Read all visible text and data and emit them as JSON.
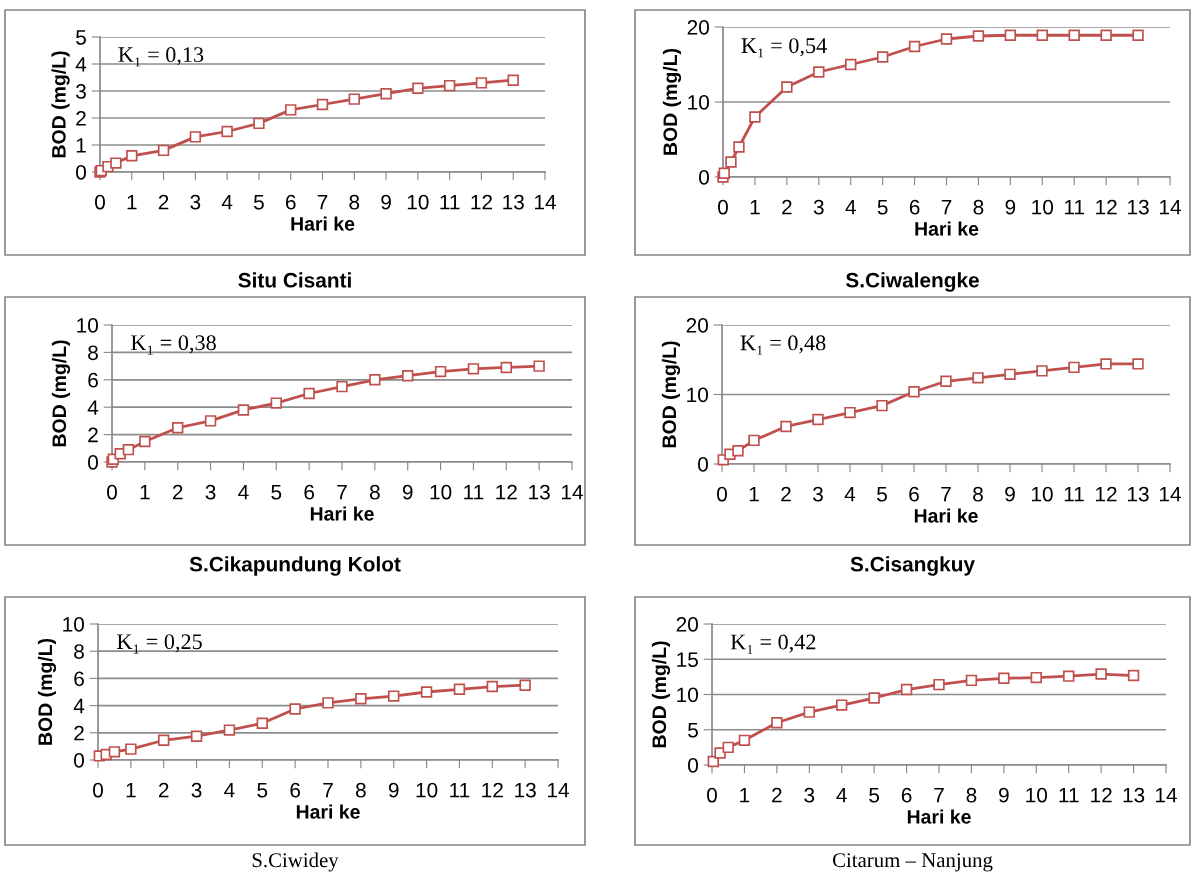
{
  "chart_data": [
    {
      "type": "line",
      "title": "Situ Cisanti",
      "xlabel": "Hari ke",
      "ylabel": "BOD (mg/L)",
      "annotations": [
        "K₁ = 0,13"
      ],
      "x": [
        0,
        0.04,
        0.25,
        0.5,
        1,
        2,
        3,
        4,
        5,
        6,
        7,
        8,
        9,
        10,
        11,
        12,
        13
      ],
      "series": [
        {
          "color": "#c0504d",
          "values": [
            0,
            0.05,
            0.2,
            0.33,
            0.6,
            0.8,
            1.3,
            1.5,
            1.8,
            2.3,
            2.5,
            2.7,
            2.9,
            3.1,
            3.2,
            3.3,
            3.4
          ]
        }
      ],
      "xlim": [
        0,
        14
      ],
      "xticks": [
        0,
        1,
        2,
        3,
        4,
        5,
        6,
        7,
        8,
        9,
        10,
        11,
        12,
        13,
        14
      ],
      "ylim": [
        0,
        5
      ],
      "yticks": [
        0,
        1,
        2,
        3,
        4,
        5
      ],
      "grid": "y",
      "marker": "square",
      "line_style": "solid"
    },
    {
      "type": "line",
      "title": "S.Ciwalengke",
      "xlabel": "Hari ke",
      "ylabel": "BOD (mg/L)",
      "annotations": [
        "K₁ = 0,54"
      ],
      "x": [
        0,
        0.04,
        0.25,
        0.5,
        1,
        2,
        3,
        4,
        5,
        6,
        7,
        8,
        9,
        10,
        11,
        12,
        13
      ],
      "series": [
        {
          "color": "#c0504d",
          "values": [
            0,
            0.5,
            2,
            4,
            8,
            12,
            14,
            15,
            16,
            17.4,
            18.4,
            18.8,
            18.9,
            18.9,
            18.9,
            18.9,
            18.9
          ]
        }
      ],
      "xlim": [
        0,
        14
      ],
      "xticks": [
        0,
        1,
        2,
        3,
        4,
        5,
        6,
        7,
        8,
        9,
        10,
        11,
        12,
        13,
        14
      ],
      "ylim": [
        0,
        20
      ],
      "yticks": [
        0,
        10,
        20
      ],
      "grid": "y",
      "marker": "square",
      "line_style": "solid"
    },
    {
      "type": "line",
      "title": "S.Cikapundung Kolot",
      "xlabel": "Hari ke",
      "ylabel": "BOD (mg/L)",
      "annotations": [
        "K₁ = 0,38"
      ],
      "x": [
        0,
        0.04,
        0.25,
        0.5,
        1,
        2,
        3,
        4,
        5,
        6,
        7,
        8,
        9,
        10,
        11,
        12,
        13
      ],
      "series": [
        {
          "color": "#c0504d",
          "values": [
            0,
            0.2,
            0.6,
            0.9,
            1.5,
            2.5,
            3.0,
            3.8,
            4.3,
            5.0,
            5.5,
            6.0,
            6.3,
            6.6,
            6.8,
            6.9,
            7.0
          ]
        }
      ],
      "xlim": [
        0,
        14
      ],
      "xticks": [
        0,
        1,
        2,
        3,
        4,
        5,
        6,
        7,
        8,
        9,
        10,
        11,
        12,
        13,
        14
      ],
      "ylim": [
        0,
        10
      ],
      "yticks": [
        0,
        2,
        4,
        6,
        8,
        10
      ],
      "grid": "y",
      "marker": "square",
      "line_style": "solid"
    },
    {
      "type": "line",
      "title": "S.Cisangkuy",
      "xlabel": "Hari ke",
      "ylabel": "BOD (mg/L)",
      "annotations": [
        "K₁ = 0,48"
      ],
      "x": [
        0.04,
        0.25,
        0.5,
        1,
        2,
        3,
        4,
        5,
        6,
        7,
        8,
        9,
        10,
        11,
        12,
        13
      ],
      "series": [
        {
          "color": "#c0504d",
          "values": [
            0.6,
            1.4,
            1.9,
            3.4,
            5.4,
            6.4,
            7.4,
            8.4,
            10.4,
            11.9,
            12.4,
            12.9,
            13.4,
            13.9,
            14.4,
            14.4
          ]
        }
      ],
      "xlim": [
        0,
        14
      ],
      "xticks": [
        0,
        1,
        2,
        3,
        4,
        5,
        6,
        7,
        8,
        9,
        10,
        11,
        12,
        13,
        14
      ],
      "ylim": [
        0,
        20
      ],
      "yticks": [
        0,
        10,
        20
      ],
      "grid": "y",
      "marker": "square",
      "line_style": "solid"
    },
    {
      "type": "line",
      "title": "S.Ciwidey",
      "xlabel": "Hari ke",
      "ylabel": "BOD (mg/L)",
      "annotations": [
        "K₁ = 0,25"
      ],
      "x": [
        0.04,
        0.25,
        0.5,
        1,
        2,
        3,
        4,
        5,
        6,
        7,
        8,
        9,
        10,
        11,
        12,
        13
      ],
      "series": [
        {
          "color": "#c0504d",
          "values": [
            0.3,
            0.4,
            0.6,
            0.8,
            1.45,
            1.75,
            2.2,
            2.7,
            3.75,
            4.2,
            4.5,
            4.7,
            5.0,
            5.2,
            5.4,
            5.5
          ]
        }
      ],
      "xlim": [
        0,
        14
      ],
      "xticks": [
        0,
        1,
        2,
        3,
        4,
        5,
        6,
        7,
        8,
        9,
        10,
        11,
        12,
        13,
        14
      ],
      "ylim": [
        0,
        10
      ],
      "yticks": [
        0,
        2,
        4,
        6,
        8,
        10
      ],
      "grid": "y",
      "marker": "square",
      "line_style": "solid"
    },
    {
      "type": "line",
      "title": "Citarum – Nanjung",
      "xlabel": "Hari ke",
      "ylabel": "BOD (mg/L)",
      "annotations": [
        "K₁ = 0,42"
      ],
      "x": [
        0.04,
        0.25,
        0.5,
        1,
        2,
        3,
        4,
        5,
        6,
        7,
        8,
        9,
        10,
        11,
        12,
        13
      ],
      "series": [
        {
          "color": "#c0504d",
          "values": [
            0.5,
            1.7,
            2.5,
            3.5,
            6,
            7.5,
            8.5,
            9.5,
            10.7,
            11.4,
            12,
            12.3,
            12.4,
            12.6,
            12.9,
            12.7
          ]
        }
      ],
      "xlim": [
        0,
        14
      ],
      "xticks": [
        0,
        1,
        2,
        3,
        4,
        5,
        6,
        7,
        8,
        9,
        10,
        11,
        12,
        13,
        14
      ],
      "ylim": [
        0,
        20
      ],
      "yticks": [
        0,
        5,
        10,
        15,
        20
      ],
      "grid": "y",
      "marker": "square",
      "line_style": "solid"
    }
  ]
}
